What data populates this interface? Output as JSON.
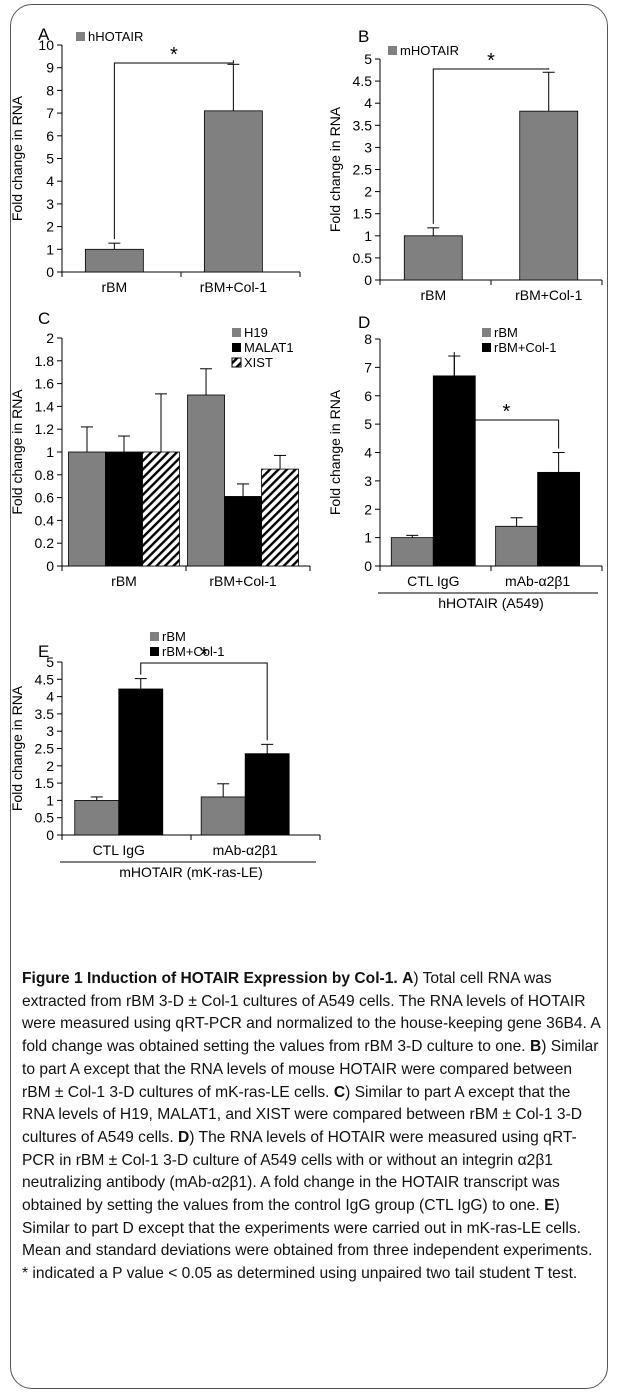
{
  "chart_data": [
    {
      "type": "bar",
      "panel_label": "A",
      "categories": [
        "rBM",
        "rBM+Col-1"
      ],
      "series": [
        {
          "name": "hHOTAIR",
          "values": [
            1.0,
            7.1
          ],
          "errors": [
            0.27,
            2.05
          ],
          "color": "#808080"
        }
      ],
      "ylabel": "Fold change in RNA",
      "ylim": [
        0,
        10
      ],
      "yticks": [
        "0",
        "1",
        "2",
        "3",
        "4",
        "5",
        "6",
        "7",
        "8",
        "9",
        "10"
      ],
      "significance": "*"
    },
    {
      "type": "bar",
      "panel_label": "B",
      "categories": [
        "rBM",
        "rBM+Col-1"
      ],
      "series": [
        {
          "name": "mHOTAIR",
          "values": [
            1.0,
            3.82
          ],
          "errors": [
            0.18,
            0.88
          ],
          "color": "#808080"
        }
      ],
      "ylabel": "Fold change in RNA",
      "ylim": [
        0,
        5
      ],
      "yticks": [
        "0",
        "0.5",
        "1",
        "1.5",
        "2",
        "2.5",
        "3",
        "3.5",
        "4",
        "4.5",
        "5"
      ],
      "significance": "*"
    },
    {
      "type": "bar",
      "panel_label": "C",
      "categories": [
        "rBM",
        "rBM+Col-1"
      ],
      "series": [
        {
          "name": "H19",
          "values": [
            1.0,
            1.5
          ],
          "errors": [
            0.22,
            0.23
          ],
          "color": "#808080"
        },
        {
          "name": "MALAT1",
          "values": [
            1.0,
            0.61
          ],
          "errors": [
            0.14,
            0.11
          ],
          "color": "#000000"
        },
        {
          "name": "XIST",
          "values": [
            1.0,
            0.85
          ],
          "errors": [
            0.51,
            0.12
          ],
          "color": "hatch"
        }
      ],
      "ylabel": "Fold change in RNA",
      "ylim": [
        0,
        2
      ],
      "yticks": [
        "0",
        "0.2",
        "0.4",
        "0.6",
        "0.8",
        "1",
        "1.2",
        "1.4",
        "1.6",
        "1.8",
        "2"
      ]
    },
    {
      "type": "bar",
      "panel_label": "D",
      "categories": [
        "CTL IgG",
        "mAb-α2β1"
      ],
      "group_label": "hHOTAIR (A549)",
      "series": [
        {
          "name": "rBM",
          "values": [
            1.0,
            1.4
          ],
          "errors": [
            0.08,
            0.3
          ],
          "color": "#808080"
        },
        {
          "name": "rBM+Col-1",
          "values": [
            6.7,
            3.3
          ],
          "errors": [
            0.7,
            0.7
          ],
          "color": "#000000"
        }
      ],
      "ylabel": "Fold change in RNA",
      "ylim": [
        0,
        8
      ],
      "yticks": [
        "0",
        "1",
        "2",
        "3",
        "4",
        "5",
        "6",
        "7",
        "8"
      ],
      "significance": "*"
    },
    {
      "type": "bar",
      "panel_label": "E",
      "categories": [
        "CTL IgG",
        "mAb-α2β1"
      ],
      "group_label": "mHOTAIR (mK-ras-LE)",
      "series": [
        {
          "name": "rBM",
          "values": [
            1.0,
            1.1
          ],
          "errors": [
            0.1,
            0.38
          ],
          "color": "#808080"
        },
        {
          "name": "rBM+Col-1",
          "values": [
            4.22,
            2.35
          ],
          "errors": [
            0.3,
            0.27
          ],
          "color": "#000000"
        }
      ],
      "ylabel": "Fold change in RNA",
      "ylim": [
        0,
        5
      ],
      "yticks": [
        "0",
        "0.5",
        "1",
        "1.5",
        "2",
        "2.5",
        "3",
        "3.5",
        "4",
        "4.5",
        "5"
      ],
      "significance": "*"
    }
  ],
  "caption": {
    "title": "Figure 1 Induction of HOTAIR Expression by Col-1.",
    "parts": [
      {
        "label": "A",
        "text": ") Total cell RNA was extracted from rBM 3-D ± Col-1 cultures of A549 cells. The RNA levels of HOTAIR were measured using qRT-PCR and normalized to the house-keeping gene 36B4. A fold change was obtained setting the values from rBM 3-D culture to one. "
      },
      {
        "label": "B",
        "text": ") Similar to part A except that the RNA levels of mouse HOTAIR were compared between rBM ± Col-1 3-D cultures of mK-ras-LE cells. "
      },
      {
        "label": "C",
        "text": ") Similar to part A except that the RNA levels of H19, MALAT1, and XIST were compared between rBM ± Col-1 3-D cultures of A549 cells. "
      },
      {
        "label": "D",
        "text": ") The RNA levels of HOTAIR were measured using qRT-PCR in rBM ± Col-1 3-D culture of A549 cells with or without an integrin α2β1 neutralizing antibody (mAb-α2β1). A fold change in the HOTAIR transcript was obtained by setting the values from the control IgG group (CTL IgG) to one. "
      },
      {
        "label": "E",
        "text": ") Similar to part D except that the experiments were carried out in mK-ras-LE cells. Mean and standard deviations were obtained from three independent experiments. * indicated a P value < 0.05 as determined using unpaired two tail student T test."
      }
    ]
  }
}
